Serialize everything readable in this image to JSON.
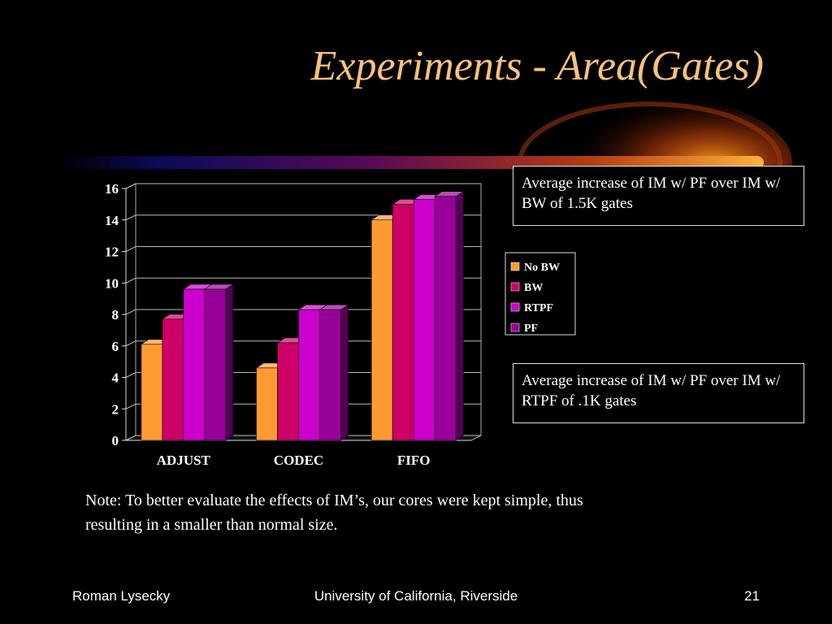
{
  "slide": {
    "title": "Experiments - Area(Gates)",
    "callout_1": "Average increase of IM w/ PF over IM w/ BW of 1.5K gates",
    "callout_2": "Average increase of IM w/ PF over IM w/ RTPF of .1K gates",
    "note": "Note: To better evaluate the effects of IM’s, our cores were kept simple, thus resulting in a smaller than normal size.",
    "footer": {
      "author": "Roman Lysecky",
      "institution": "University of California, Riverside",
      "page_number": "21"
    },
    "colors": {
      "title": "#f7c27c",
      "accent_glow": "#ff8c00"
    }
  },
  "chart_data": {
    "type": "bar",
    "title": "",
    "xlabel": "",
    "ylabel": "",
    "categories": [
      "ADJUST",
      "CODEC",
      "FIFO"
    ],
    "series": [
      {
        "name": "No BW",
        "values": [
          6.1,
          4.6,
          14.0
        ],
        "color": "#ff9a33"
      },
      {
        "name": "BW",
        "values": [
          7.7,
          6.2,
          15.0
        ],
        "color": "#cc0066"
      },
      {
        "name": "RTPF",
        "values": [
          9.6,
          8.3,
          15.3
        ],
        "color": "#cc00cc"
      },
      {
        "name": "PF",
        "values": [
          9.6,
          8.3,
          15.5
        ],
        "color": "#990099"
      }
    ],
    "ylim": [
      0,
      16
    ],
    "yticks": [
      "0",
      "2",
      "4",
      "6",
      "8",
      "10",
      "12",
      "14",
      "16"
    ],
    "grid": true,
    "legend": "right",
    "style": "3d-clustered-column"
  }
}
